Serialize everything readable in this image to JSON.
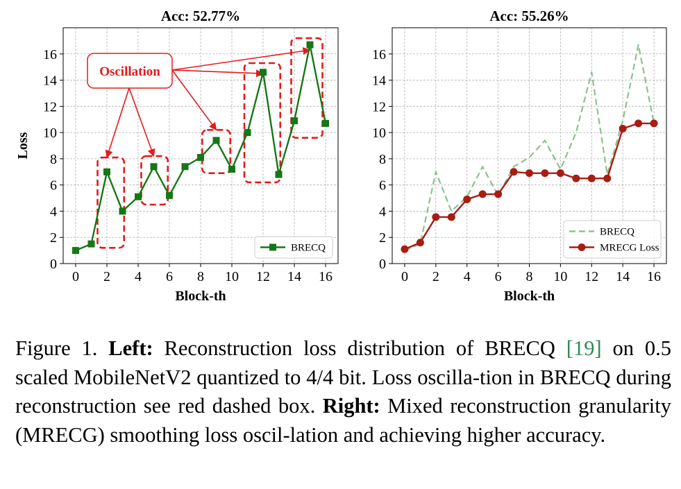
{
  "chart_data": [
    {
      "type": "line",
      "title": "Acc: 52.77%",
      "xlabel": "Block-th",
      "ylabel": "Loss",
      "xlim": [
        -0.8,
        16.8
      ],
      "ylim": [
        0,
        18
      ],
      "xticks": [
        0,
        2,
        4,
        6,
        8,
        10,
        12,
        14,
        16
      ],
      "yticks": [
        0,
        2,
        4,
        6,
        8,
        10,
        12,
        14,
        16
      ],
      "grid": true,
      "legend": "lower-right",
      "series": [
        {
          "name": "BRECQ",
          "color": "#157715",
          "style": "solid",
          "marker": "square",
          "x": [
            0,
            1,
            2,
            3,
            4,
            5,
            6,
            7,
            8,
            9,
            10,
            11,
            12,
            13,
            14,
            15,
            16
          ],
          "y": [
            1.0,
            1.5,
            7.0,
            4.0,
            5.1,
            7.4,
            5.2,
            7.4,
            8.1,
            9.4,
            7.2,
            10.0,
            14.6,
            6.8,
            10.9,
            16.7,
            10.7
          ]
        }
      ],
      "annotations": {
        "label": "Oscillation",
        "color": "#e41a1c",
        "boxes": [
          {
            "x0": 1.4,
            "x1": 3.1,
            "y0": 1.2,
            "y1": 8.1
          },
          {
            "x0": 4.2,
            "x1": 5.9,
            "y0": 4.5,
            "y1": 8.2
          },
          {
            "x0": 8.1,
            "x1": 9.9,
            "y0": 6.9,
            "y1": 10.2
          },
          {
            "x0": 10.8,
            "x1": 13.1,
            "y0": 6.2,
            "y1": 15.3
          },
          {
            "x0": 13.8,
            "x1": 15.8,
            "y0": 9.6,
            "y1": 17.2
          }
        ],
        "arrow_targets": [
          [
            2.0,
            8.1
          ],
          [
            5.0,
            8.2
          ],
          [
            9.0,
            10.2
          ],
          [
            12.0,
            14.5
          ],
          [
            15.0,
            16.3
          ]
        ]
      }
    },
    {
      "type": "line",
      "title": "Acc: 55.26%",
      "xlabel": "Block-th",
      "ylabel": "",
      "xlim": [
        -0.8,
        16.8
      ],
      "ylim": [
        0,
        18
      ],
      "xticks": [
        0,
        2,
        4,
        6,
        8,
        10,
        12,
        14,
        16
      ],
      "yticks": [
        0,
        2,
        4,
        6,
        8,
        10,
        12,
        14,
        16
      ],
      "grid": true,
      "legend": "lower-right",
      "series": [
        {
          "name": "BRECQ",
          "color": "#8fbf8f",
          "style": "dashed",
          "marker": "none",
          "x": [
            0,
            1,
            2,
            3,
            4,
            5,
            6,
            7,
            8,
            9,
            10,
            11,
            12,
            13,
            14,
            15,
            16
          ],
          "y": [
            1.0,
            1.5,
            7.0,
            4.0,
            5.1,
            7.4,
            5.2,
            7.4,
            8.1,
            9.4,
            7.2,
            10.0,
            14.6,
            6.8,
            10.9,
            16.7,
            10.7
          ]
        },
        {
          "name": "MRECG Loss",
          "color": "#a81c12",
          "style": "solid",
          "marker": "circle",
          "x": [
            0,
            1,
            2,
            3,
            4,
            5,
            6,
            7,
            8,
            9,
            10,
            11,
            12,
            13,
            14,
            15,
            16
          ],
          "y": [
            1.1,
            1.6,
            3.55,
            3.55,
            4.9,
            5.3,
            5.3,
            7.0,
            6.9,
            6.9,
            6.9,
            6.5,
            6.5,
            6.5,
            10.3,
            10.7,
            10.7
          ]
        }
      ]
    }
  ],
  "caption": {
    "figure": "Figure 1.",
    "left_label": "Left:",
    "part1": "Reconstruction loss distribution of BRECQ",
    "cite_open": "[",
    "cite_num": "19",
    "cite_close": "]",
    "part2": "on 0.5 scaled MobileNetV2 quantized to 4/4 bit.  Loss oscilla-tion in BRECQ during reconstruction see red dashed box.",
    "right_label": "Right:",
    "part3": "Mixed reconstruction granularity (MRECG) smoothing loss oscil-lation and achieving higher accuracy."
  }
}
